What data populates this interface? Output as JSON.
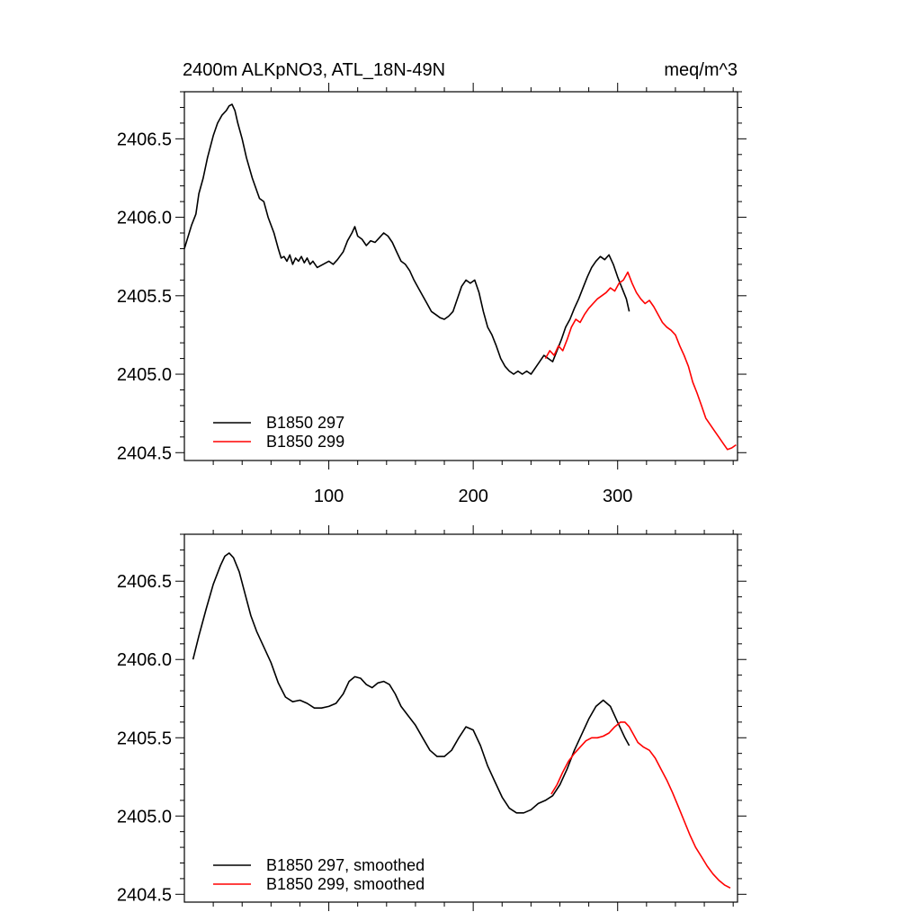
{
  "chart_data": [
    {
      "type": "line",
      "title": "2400m ALKpNO3, ATL_18N-49N",
      "units": "meq/m^3",
      "xlim": [
        0,
        383
      ],
      "ylim": [
        2404.45,
        2406.8
      ],
      "xticks": [
        100,
        200,
        300
      ],
      "xtick_labels": [
        "100",
        "200",
        "300"
      ],
      "yticks": [
        2404.5,
        2405.0,
        2405.5,
        2406.0,
        2406.5
      ],
      "ytick_labels": [
        "2404.5",
        "2405.0",
        "2405.5",
        "2406.0",
        "2406.5"
      ],
      "legend_position": "bottom-left",
      "series": [
        {
          "name": "B1850 297",
          "color": "#000000",
          "x": [
            0,
            5,
            8,
            10,
            13,
            16,
            20,
            23,
            26,
            29,
            31,
            33,
            35,
            37,
            40,
            43,
            47,
            52,
            55,
            58,
            62,
            65,
            67,
            69,
            71,
            73,
            75,
            77,
            79,
            81,
            83,
            85,
            87,
            89,
            92,
            96,
            100,
            103,
            106,
            110,
            113,
            116,
            118,
            120,
            123,
            126,
            129,
            132,
            135,
            138,
            141,
            144,
            147,
            150,
            153,
            156,
            159,
            162,
            165,
            168,
            171,
            174,
            177,
            180,
            183,
            186,
            189,
            192,
            195,
            198,
            201,
            204,
            207,
            210,
            213,
            216,
            219,
            222,
            225,
            228,
            231,
            234,
            237,
            240,
            243,
            246,
            249,
            252,
            255,
            258,
            261,
            264,
            267,
            270,
            273,
            276,
            279,
            282,
            285,
            288,
            291,
            294,
            297,
            300,
            303,
            306,
            308
          ],
          "values": [
            2405.8,
            2405.95,
            2406.02,
            2406.15,
            2406.25,
            2406.38,
            2406.52,
            2406.6,
            2406.65,
            2406.68,
            2406.71,
            2406.72,
            2406.68,
            2406.6,
            2406.5,
            2406.38,
            2406.25,
            2406.12,
            2406.1,
            2406.0,
            2405.9,
            2405.8,
            2405.74,
            2405.75,
            2405.72,
            2405.76,
            2405.7,
            2405.74,
            2405.72,
            2405.75,
            2405.71,
            2405.74,
            2405.7,
            2405.72,
            2405.68,
            2405.7,
            2405.72,
            2405.7,
            2405.73,
            2405.78,
            2405.85,
            2405.9,
            2405.94,
            2405.88,
            2405.86,
            2405.82,
            2405.85,
            2405.84,
            2405.87,
            2405.9,
            2405.88,
            2405.84,
            2405.78,
            2405.72,
            2405.7,
            2405.66,
            2405.6,
            2405.55,
            2405.5,
            2405.45,
            2405.4,
            2405.38,
            2405.36,
            2405.35,
            2405.37,
            2405.4,
            2405.48,
            2405.56,
            2405.6,
            2405.58,
            2405.6,
            2405.52,
            2405.4,
            2405.3,
            2405.25,
            2405.18,
            2405.1,
            2405.05,
            2405.02,
            2405.0,
            2405.02,
            2405.0,
            2405.02,
            2405.0,
            2405.04,
            2405.08,
            2405.12,
            2405.1,
            2405.08,
            2405.15,
            2405.22,
            2405.3,
            2405.35,
            2405.42,
            2405.48,
            2405.55,
            2405.62,
            2405.68,
            2405.72,
            2405.75,
            2405.73,
            2405.76,
            2405.7,
            2405.62,
            2405.55,
            2405.48,
            2405.4
          ]
        },
        {
          "name": "B1850 299",
          "color": "#ff0000",
          "x": [
            250,
            253,
            256,
            259,
            262,
            265,
            268,
            271,
            274,
            277,
            280,
            283,
            286,
            289,
            292,
            295,
            298,
            301,
            304,
            307,
            310,
            313,
            316,
            319,
            322,
            325,
            328,
            331,
            334,
            337,
            340,
            343,
            346,
            349,
            352,
            355,
            358,
            361,
            364,
            367,
            370,
            373,
            376,
            379,
            382
          ],
          "values": [
            2405.1,
            2405.15,
            2405.12,
            2405.18,
            2405.15,
            2405.22,
            2405.3,
            2405.35,
            2405.33,
            2405.38,
            2405.42,
            2405.45,
            2405.48,
            2405.5,
            2405.52,
            2405.55,
            2405.53,
            2405.58,
            2405.6,
            2405.65,
            2405.58,
            2405.52,
            2405.48,
            2405.45,
            2405.47,
            2405.43,
            2405.38,
            2405.33,
            2405.3,
            2405.28,
            2405.25,
            2405.18,
            2405.12,
            2405.05,
            2404.95,
            2404.88,
            2404.8,
            2404.72,
            2404.68,
            2404.64,
            2404.6,
            2404.56,
            2404.52,
            2404.53,
            2404.55
          ]
        }
      ]
    },
    {
      "type": "line",
      "title": "",
      "xlim": [
        0,
        383
      ],
      "ylim": [
        2404.45,
        2406.8
      ],
      "xticks": [
        100,
        200,
        300
      ],
      "xtick_labels": [
        "",
        "",
        ""
      ],
      "yticks": [
        2404.5,
        2405.0,
        2405.5,
        2406.0,
        2406.5
      ],
      "ytick_labels": [
        "2404.5",
        "2405.0",
        "2405.5",
        "2406.0",
        "2406.5"
      ],
      "legend_position": "bottom-left",
      "series": [
        {
          "name": "B1850 297, smoothed",
          "color": "#000000",
          "x": [
            6,
            10,
            15,
            20,
            25,
            28,
            31,
            34,
            38,
            42,
            46,
            50,
            55,
            60,
            65,
            70,
            75,
            80,
            85,
            90,
            95,
            100,
            105,
            110,
            114,
            118,
            122,
            126,
            130,
            134,
            138,
            142,
            146,
            150,
            155,
            160,
            165,
            170,
            175,
            180,
            185,
            190,
            195,
            200,
            205,
            210,
            215,
            220,
            225,
            230,
            235,
            240,
            245,
            250,
            255,
            260,
            265,
            270,
            275,
            280,
            285,
            290,
            295,
            300,
            305,
            308
          ],
          "values": [
            2406.0,
            2406.15,
            2406.32,
            2406.48,
            2406.6,
            2406.66,
            2406.68,
            2406.65,
            2406.56,
            2406.42,
            2406.28,
            2406.18,
            2406.08,
            2405.98,
            2405.85,
            2405.76,
            2405.73,
            2405.74,
            2405.72,
            2405.69,
            2405.69,
            2405.7,
            2405.72,
            2405.78,
            2405.86,
            2405.89,
            2405.88,
            2405.84,
            2405.82,
            2405.85,
            2405.86,
            2405.84,
            2405.78,
            2405.7,
            2405.64,
            2405.58,
            2405.5,
            2405.42,
            2405.38,
            2405.38,
            2405.42,
            2405.5,
            2405.57,
            2405.55,
            2405.45,
            2405.32,
            2405.22,
            2405.12,
            2405.05,
            2405.02,
            2405.02,
            2405.04,
            2405.08,
            2405.1,
            2405.13,
            2405.2,
            2405.3,
            2405.42,
            2405.52,
            2405.62,
            2405.7,
            2405.74,
            2405.7,
            2405.6,
            2405.5,
            2405.45
          ]
        },
        {
          "name": "B1850 299, smoothed",
          "color": "#ff0000",
          "x": [
            254,
            258,
            262,
            266,
            270,
            274,
            278,
            282,
            286,
            290,
            294,
            298,
            302,
            305,
            308,
            311,
            314,
            318,
            322,
            326,
            330,
            334,
            338,
            342,
            346,
            350,
            354,
            358,
            362,
            366,
            370,
            374,
            378
          ],
          "values": [
            2405.14,
            2405.2,
            2405.28,
            2405.35,
            2405.4,
            2405.44,
            2405.48,
            2405.5,
            2405.5,
            2405.51,
            2405.53,
            2405.57,
            2405.6,
            2405.6,
            2405.57,
            2405.52,
            2405.47,
            2405.44,
            2405.42,
            2405.37,
            2405.3,
            2405.23,
            2405.15,
            2405.06,
            2404.97,
            2404.88,
            2404.8,
            2404.74,
            2404.68,
            2404.63,
            2404.59,
            2404.56,
            2404.54
          ]
        }
      ]
    }
  ]
}
